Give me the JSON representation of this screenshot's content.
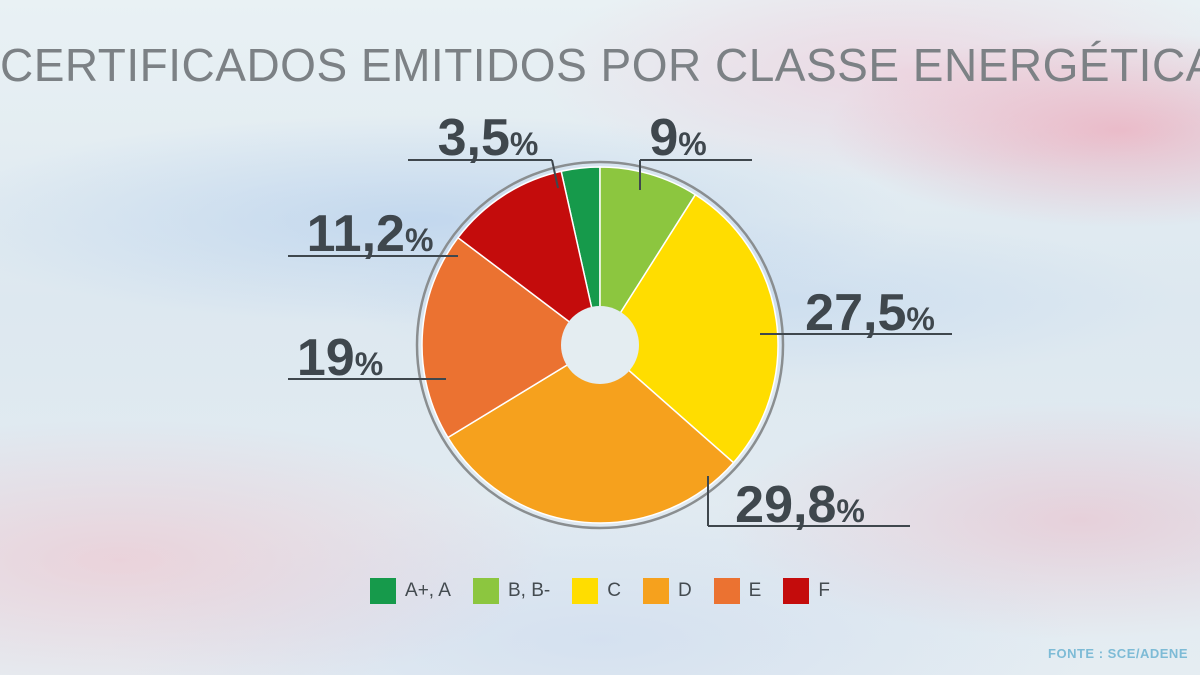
{
  "title": "CERTIFICADOS EMITIDOS POR CLASSE ENERGÉTICA",
  "source": "FONTE : SCE/ADENE",
  "chart_data": {
    "type": "pie",
    "title": "CERTIFICADOS EMITIDOS POR CLASSE ENERGÉTICA",
    "legend_position": "bottom",
    "slices": [
      {
        "label": "A+, A",
        "value": 3.5,
        "display": "3,5",
        "color": "#169a4b"
      },
      {
        "label": "B, B-",
        "value": 9,
        "display": "9",
        "color": "#8cc63f"
      },
      {
        "label": "C",
        "value": 27.5,
        "display": "27,5",
        "color": "#ffdd00"
      },
      {
        "label": "D",
        "value": 29.8,
        "display": "29,8",
        "color": "#f6a11d"
      },
      {
        "label": "E",
        "value": 19,
        "display": "19",
        "color": "#eb7231"
      },
      {
        "label": "F",
        "value": 11.2,
        "display": "11,2",
        "color": "#c40c0c"
      }
    ],
    "percent_sign": "%"
  }
}
